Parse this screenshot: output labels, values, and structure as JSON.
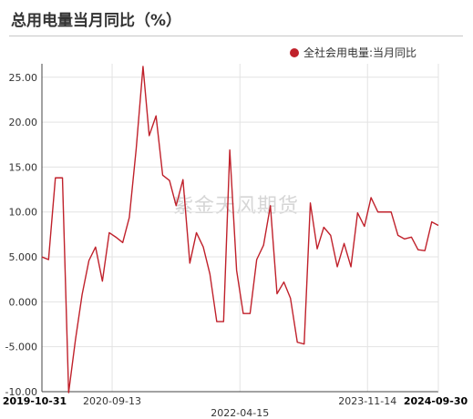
{
  "page": {
    "title": "总用电量当月同比（%）",
    "watermark": "紫金天风期货"
  },
  "colors": {
    "series": "#c0212b",
    "grid": "#e3e3e3",
    "axis": "#444444"
  },
  "chart_data": {
    "type": "line",
    "title": "总用电量当月同比（%）",
    "ylim": [
      -10,
      26.5
    ],
    "yticks": [
      25,
      20,
      15,
      10,
      5,
      0,
      -5,
      -10
    ],
    "ytick_labels": [
      "25.00",
      "20.00",
      "15.00",
      "10.00",
      "5.000",
      "0.000",
      "-5.000",
      "-10.00"
    ],
    "xlim": [
      "2019-10-31",
      "2024-09-30"
    ],
    "xtick_labels": [
      {
        "date": "2019-10-31",
        "label": "2019-10-31",
        "bold": true,
        "row": 0
      },
      {
        "date": "2020-09-13",
        "label": "2020-09-13",
        "bold": false,
        "row": 0
      },
      {
        "date": "2022-04-15",
        "label": "2022-04-15",
        "bold": false,
        "row": 1
      },
      {
        "date": "2023-11-14",
        "label": "2023-11-14",
        "bold": false,
        "row": 0
      },
      {
        "date": "2024-09-30",
        "label": "2024-09-30",
        "bold": true,
        "row": 0
      }
    ],
    "grid": true,
    "legend_position": "top-right",
    "series": [
      {
        "name": "全社会用电量:当月同比",
        "points": [
          [
            "2019-10-31",
            5.0
          ],
          [
            "2019-11-30",
            4.7
          ],
          [
            "2019-12-31",
            13.8
          ],
          [
            "2020-02-01",
            13.8
          ],
          [
            "2020-02-29",
            -10.1
          ],
          [
            "2020-03-31",
            -4.2
          ],
          [
            "2020-04-30",
            0.8
          ],
          [
            "2020-05-31",
            4.6
          ],
          [
            "2020-06-30",
            6.1
          ],
          [
            "2020-07-31",
            2.3
          ],
          [
            "2020-08-31",
            7.7
          ],
          [
            "2020-09-30",
            7.2
          ],
          [
            "2020-10-31",
            6.6
          ],
          [
            "2020-11-30",
            9.4
          ],
          [
            "2020-12-31",
            17.0
          ],
          [
            "2021-01-31",
            26.2
          ],
          [
            "2021-02-28",
            18.5
          ],
          [
            "2021-03-31",
            20.7
          ],
          [
            "2021-04-30",
            14.1
          ],
          [
            "2021-05-31",
            13.5
          ],
          [
            "2021-06-30",
            10.7
          ],
          [
            "2021-07-31",
            13.6
          ],
          [
            "2021-08-31",
            4.3
          ],
          [
            "2021-09-30",
            7.7
          ],
          [
            "2021-10-31",
            6.1
          ],
          [
            "2021-11-30",
            3.1
          ],
          [
            "2021-12-31",
            -2.2
          ],
          [
            "2022-01-31",
            -2.2
          ],
          [
            "2022-02-28",
            16.9
          ],
          [
            "2022-03-31",
            3.5
          ],
          [
            "2022-04-30",
            -1.3
          ],
          [
            "2022-05-31",
            -1.3
          ],
          [
            "2022-06-30",
            4.7
          ],
          [
            "2022-07-31",
            6.3
          ],
          [
            "2022-08-31",
            10.7
          ],
          [
            "2022-09-30",
            0.9
          ],
          [
            "2022-10-31",
            2.2
          ],
          [
            "2022-11-30",
            0.4
          ],
          [
            "2022-12-31",
            -4.5
          ],
          [
            "2023-01-31",
            -4.7
          ],
          [
            "2023-02-28",
            11.0
          ],
          [
            "2023-03-31",
            5.9
          ],
          [
            "2023-04-30",
            8.3
          ],
          [
            "2023-05-31",
            7.4
          ],
          [
            "2023-06-30",
            3.9
          ],
          [
            "2023-07-31",
            6.5
          ],
          [
            "2023-08-31",
            3.9
          ],
          [
            "2023-09-30",
            9.9
          ],
          [
            "2023-10-31",
            8.4
          ],
          [
            "2023-11-30",
            11.6
          ],
          [
            "2023-12-31",
            10.0
          ],
          [
            "2024-01-31",
            10.0
          ],
          [
            "2024-02-29",
            10.0
          ],
          [
            "2024-03-31",
            7.4
          ],
          [
            "2024-04-30",
            7.0
          ],
          [
            "2024-05-31",
            7.2
          ],
          [
            "2024-06-30",
            5.8
          ],
          [
            "2024-07-31",
            5.7
          ],
          [
            "2024-08-31",
            8.9
          ],
          [
            "2024-09-30",
            8.5
          ]
        ]
      }
    ]
  }
}
